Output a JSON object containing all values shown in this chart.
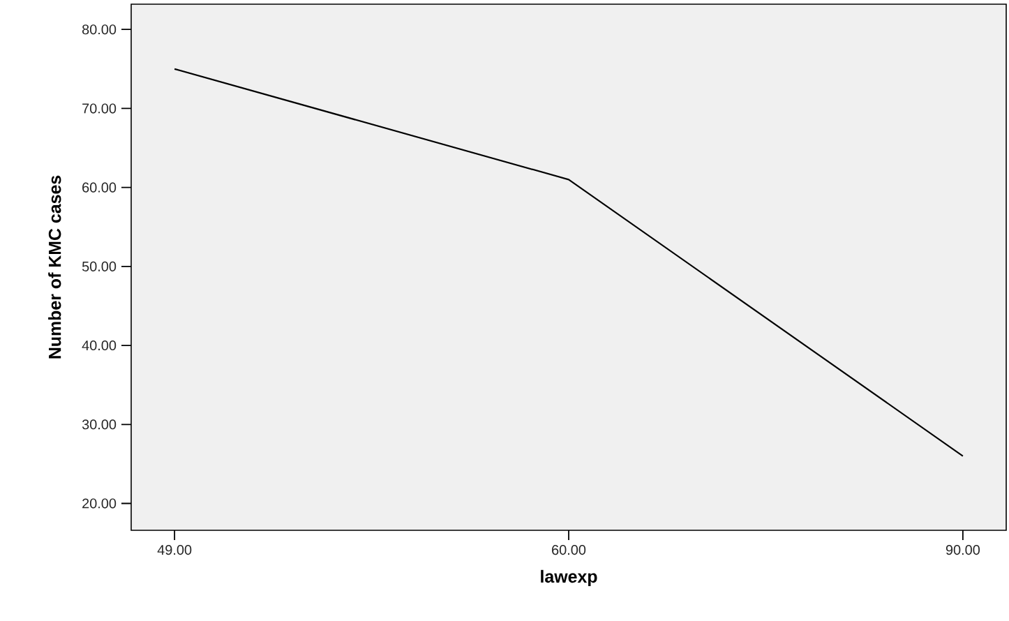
{
  "chart_data": {
    "type": "line",
    "xlabel": "lawexp",
    "ylabel": "Number of KMC cases",
    "categories": [
      "49.00",
      "60.00",
      "90.00"
    ],
    "series": [
      {
        "color": "#000000",
        "values": [
          75,
          61,
          26
        ]
      }
    ],
    "ylim": [
      16.6,
      83.2
    ],
    "yticks": [
      {
        "value": 20,
        "label": "20.00"
      },
      {
        "value": 30,
        "label": "30.00"
      },
      {
        "value": 40,
        "label": "40.00"
      },
      {
        "value": 50,
        "label": "50.00"
      },
      {
        "value": 60,
        "label": "60.00"
      },
      {
        "value": 70,
        "label": "70.00"
      },
      {
        "value": 80,
        "label": "80.00"
      }
    ],
    "grid": false,
    "marker": "none",
    "line_style": "solid"
  }
}
